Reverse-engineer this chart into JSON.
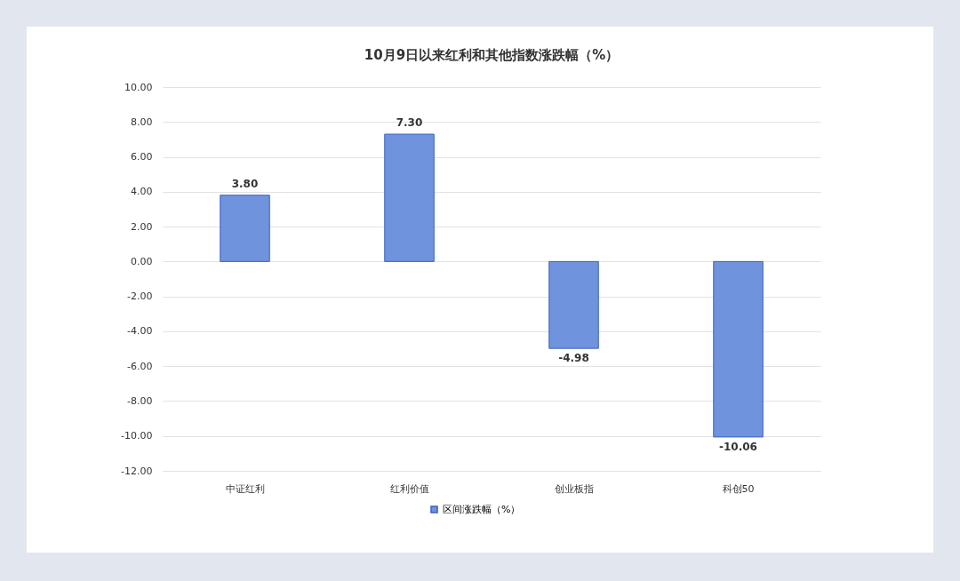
{
  "chart_data": {
    "type": "bar",
    "title": "10月9日以来红利和其他指数涨跌幅（%）",
    "categories": [
      "中证红利",
      "红利价值",
      "创业板指",
      "科创50"
    ],
    "series": [
      {
        "name": "区间涨跌幅（%）",
        "color": "#6f93dc",
        "values": [
          3.8,
          7.3,
          -4.98,
          -10.06
        ],
        "value_labels": [
          "3.80",
          "7.30",
          "-4.98",
          "-10.06"
        ]
      }
    ],
    "ylim": [
      -12,
      10
    ],
    "yticks": [
      {
        "value": 10,
        "label": "10.00"
      },
      {
        "value": 8,
        "label": "8.00"
      },
      {
        "value": 6,
        "label": "6.00"
      },
      {
        "value": 4,
        "label": "4.00"
      },
      {
        "value": 2,
        "label": "2.00"
      },
      {
        "value": 0,
        "label": "0.00"
      },
      {
        "value": -2,
        "label": "-2.00"
      },
      {
        "value": -4,
        "label": "-4.00"
      },
      {
        "value": -6,
        "label": "-6.00"
      },
      {
        "value": -8,
        "label": "-8.00"
      },
      {
        "value": -10,
        "label": "-10.00"
      },
      {
        "value": -12,
        "label": "-12.00"
      }
    ],
    "grid": "y",
    "legend": "bottom"
  }
}
